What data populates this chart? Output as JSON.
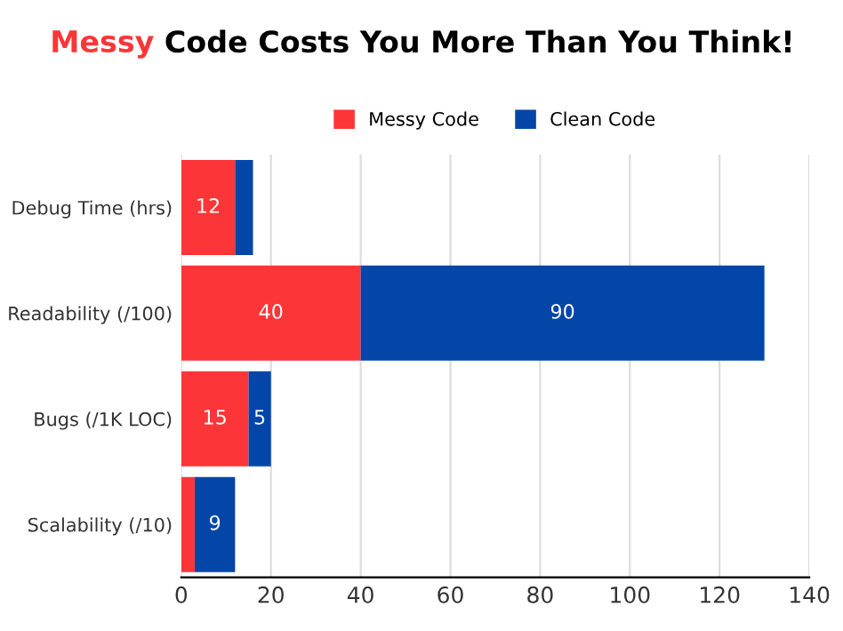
{
  "chart_data": {
    "type": "bar",
    "orientation": "horizontal",
    "stacked": true,
    "title": "Messy Code Costs You More Than You Think!",
    "categories": [
      "Debug Time (hrs)",
      "Readability (/100)",
      "Bugs (/1K LOC)",
      "Scalability (/10)"
    ],
    "series": [
      {
        "name": "Messy Code",
        "color": "#fc3638",
        "values": [
          12,
          40,
          15,
          3
        ],
        "value_labels": [
          "12",
          "40",
          "15",
          null
        ]
      },
      {
        "name": "Clean Code",
        "color": "#0446a8",
        "values": [
          4,
          90,
          5,
          9
        ],
        "value_labels": [
          null,
          "90",
          "5",
          "9"
        ]
      }
    ],
    "xlim": [
      0,
      140
    ],
    "xticks": [
      0,
      20,
      40,
      60,
      80,
      100,
      120,
      140
    ],
    "grid": "x",
    "legend": "top"
  }
}
